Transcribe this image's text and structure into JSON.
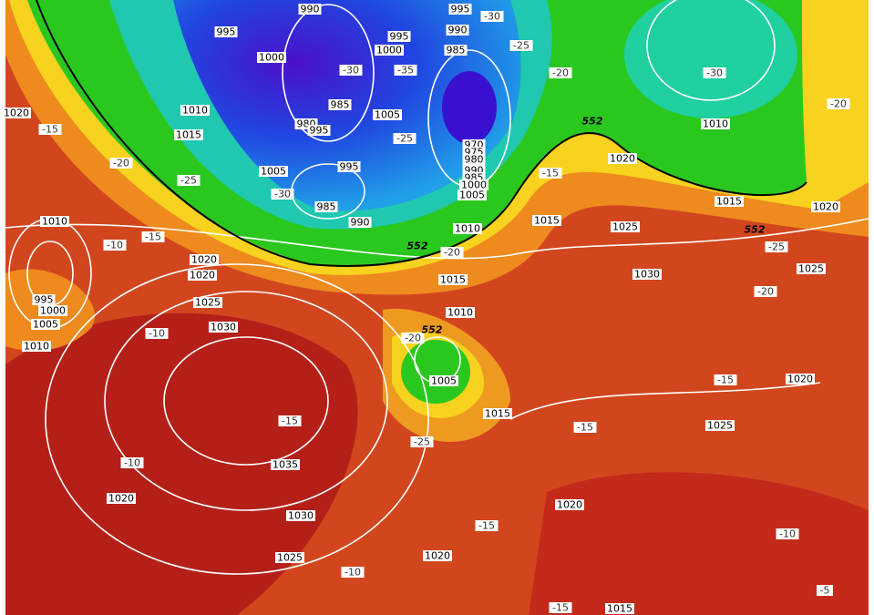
{
  "map": {
    "isobar_labels": [
      "990",
      "995",
      "995",
      "990",
      "995",
      "1000",
      "1000",
      "985",
      "1010",
      "1005",
      "985",
      "980",
      "995",
      "1015",
      "970",
      "975",
      "980",
      "990",
      "985",
      "1000",
      "1005",
      "995",
      "1005",
      "985",
      "990",
      "1010",
      "1020",
      "1015",
      "1020",
      "1015",
      "1025",
      "1010",
      "1025",
      "1030",
      "1015",
      "1010",
      "1020",
      "1010",
      "1020",
      "1020",
      "1025",
      "995",
      "1000",
      "1005",
      "1010",
      "1030",
      "1005",
      "1020",
      "1015",
      "1025",
      "1035",
      "1020",
      "1030",
      "1020",
      "1025",
      "1020",
      "1015"
    ],
    "temperature_labels": [
      "-30",
      "-25",
      "-20",
      "-30",
      "-20",
      "-35",
      "-30",
      "-25",
      "-15",
      "-20",
      "-25",
      "-30",
      "-15",
      "-10",
      "-15",
      "-20",
      "-25",
      "-20",
      "-10",
      "-20",
      "-15",
      "-15",
      "-25",
      "-15",
      "-10",
      "-15",
      "-10",
      "-10",
      "-15",
      "-5"
    ],
    "thickness_labels": [
      "552",
      "552",
      "552",
      "552"
    ]
  }
}
